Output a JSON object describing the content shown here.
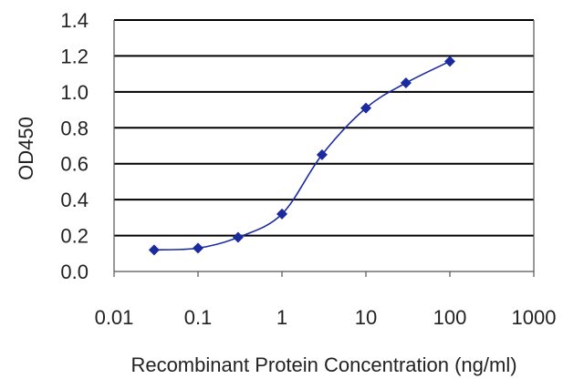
{
  "chart_data": {
    "type": "line",
    "title": "",
    "xlabel": "Recombinant Protein Concentration (ng/ml)",
    "ylabel": "OD450",
    "xscale": "log",
    "xlim": [
      0.01,
      1000
    ],
    "ylim": [
      0.0,
      1.4
    ],
    "xticks": [
      "0.01",
      "0.1",
      "1",
      "10",
      "100",
      "1000"
    ],
    "yticks": [
      "0.0",
      "0.2",
      "0.4",
      "0.6",
      "0.8",
      "1.0",
      "1.2",
      "1.4"
    ],
    "grid": "horizontal",
    "series": [
      {
        "color": "#1c2aa0",
        "x": [
          0.03,
          0.1,
          0.3,
          1,
          3,
          10,
          30,
          100
        ],
        "y": [
          0.12,
          0.13,
          0.19,
          0.32,
          0.65,
          0.91,
          1.05,
          1.17
        ]
      }
    ]
  }
}
